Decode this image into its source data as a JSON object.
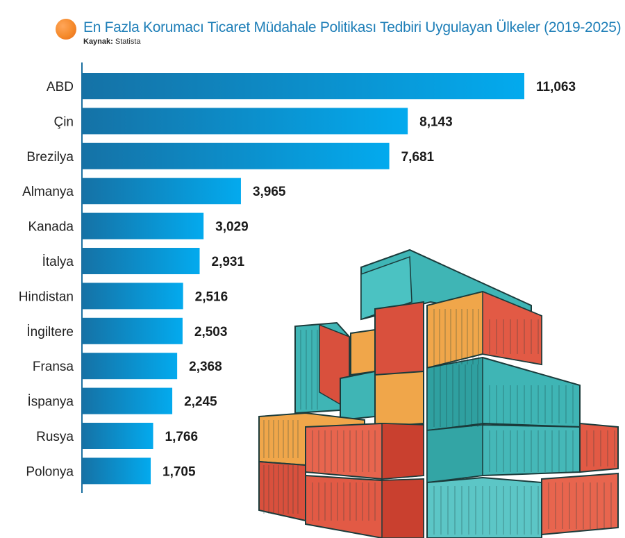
{
  "header": {
    "title": "En Fazla Korumacı Ticaret Müdahale Politikası Tedbiri Uygulayan Ülkeler (2019-2025)",
    "source_label": "Kaynak:",
    "source_value": "Statista",
    "accent_color": "#f58a2b",
    "title_color": "#1f7fb8"
  },
  "chart_data": {
    "type": "bar",
    "orientation": "horizontal",
    "title": "En Fazla Korumacı Ticaret Müdahale Politikası Tedbiri Uygulayan Ülkeler (2019-2025)",
    "source": "Statista",
    "xlabel": "",
    "ylabel": "",
    "categories": [
      "ABD",
      "Çin",
      "Brezilya",
      "Almanya",
      "Kanada",
      "İtalya",
      "Hindistan",
      "İngiltere",
      "Fransa",
      "İspanya",
      "Rusya",
      "Polonya"
    ],
    "values": [
      11063,
      8143,
      7681,
      3965,
      3029,
      2931,
      2516,
      2503,
      2368,
      2245,
      1766,
      1705
    ],
    "value_labels": [
      "11,063",
      "8,143",
      "7,681",
      "3,965",
      "3,029",
      "2,931",
      "2,516",
      "2,503",
      "2,368",
      "2,245",
      "1,766",
      "1,705"
    ],
    "xlim": [
      0,
      11063
    ],
    "grid": false,
    "legend": "none",
    "bar_gradient": [
      "#1572a6",
      "#03aaee"
    ]
  },
  "illustration": {
    "subject": "stacked shipping containers",
    "colors": [
      "#3fb5b5",
      "#e25a45",
      "#f0a64a"
    ]
  }
}
